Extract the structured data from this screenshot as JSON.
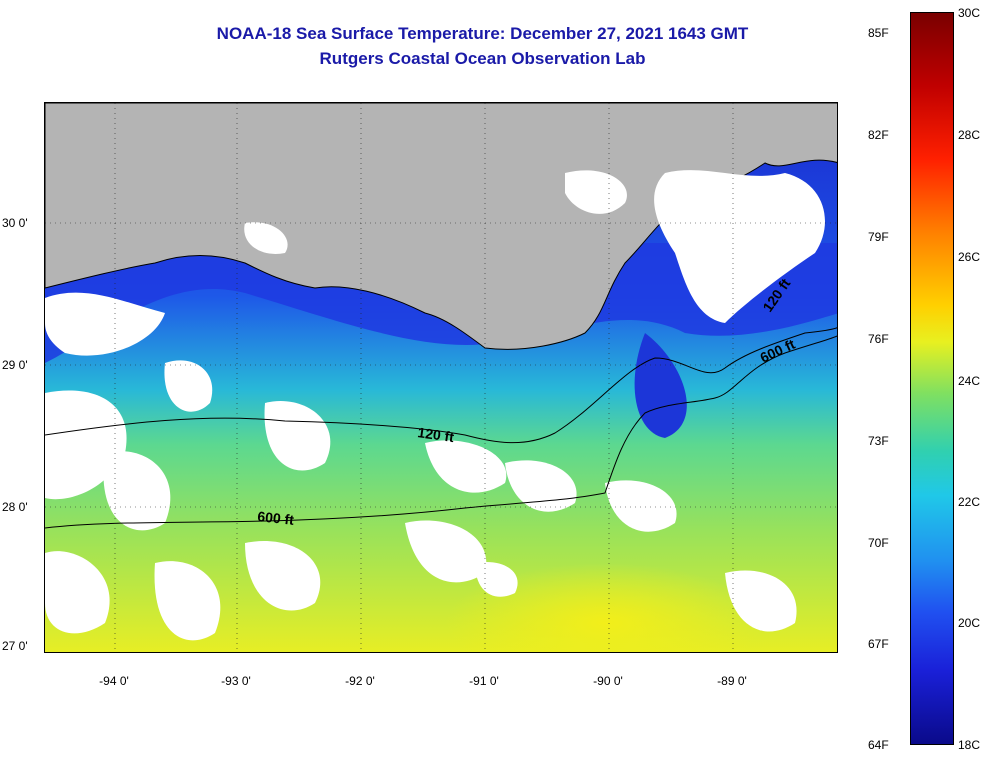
{
  "title": {
    "line1": "NOAA-18 Sea Surface Temperature:  December 27, 2021 1643 GMT",
    "line2": "Rutgers Coastal Ocean Observation Lab"
  },
  "axes": {
    "y_labels": [
      "30 0'",
      "29 0'",
      "28 0'",
      "27 0'"
    ],
    "x_labels": [
      "-94 0'",
      "-93 0'",
      "-92 0'",
      "-91 0'",
      "-90 0'",
      "-89 0'"
    ]
  },
  "contours": {
    "label_120_west": "120 ft",
    "label_600_west": "600 ft",
    "label_600_east": "600 ft",
    "label_120_east": "120 ft"
  },
  "colorbar": {
    "fahrenheit": [
      "85F",
      "82F",
      "79F",
      "76F",
      "73F",
      "70F",
      "67F",
      "64F"
    ],
    "celsius": [
      "30C",
      "28C",
      "26C",
      "24C",
      "22C",
      "20C",
      "18C"
    ]
  },
  "colors": {
    "title": "#1a1aa8",
    "land": "#b4b4b4",
    "cloud": "#ffffff",
    "cold_water": "#1e3cd8",
    "warm_water": "#d8ec30"
  },
  "icons": [
    "land-mass",
    "cloud-cover",
    "sst-field",
    "colorbar-scale"
  ]
}
